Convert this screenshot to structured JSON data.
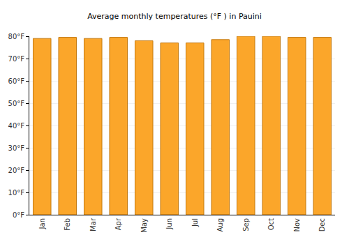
{
  "chart_data": {
    "type": "bar",
    "title": "Average monthly temperatures (°F ) in Pauini",
    "categories": [
      "Jan",
      "Feb",
      "Mar",
      "Apr",
      "May",
      "Jun",
      "Jul",
      "Aug",
      "Sep",
      "Oct",
      "Nov",
      "Dec"
    ],
    "values": [
      79,
      79.5,
      79,
      79.5,
      78,
      77,
      77,
      78.5,
      80,
      80,
      79.5,
      79.5
    ],
    "color": "#fba62a",
    "ylim": [
      0,
      80
    ],
    "yticks": [
      {
        "value": 0,
        "label": "0°F"
      },
      {
        "value": 10,
        "label": "10°F"
      },
      {
        "value": 20,
        "label": "20°F"
      },
      {
        "value": 30,
        "label": "30°F"
      },
      {
        "value": 40,
        "label": "40°F"
      },
      {
        "value": 50,
        "label": "50°F"
      },
      {
        "value": 60,
        "label": "60°F"
      },
      {
        "value": 70,
        "label": "70°F"
      },
      {
        "value": 80,
        "label": "80°F"
      }
    ],
    "grid": true
  }
}
